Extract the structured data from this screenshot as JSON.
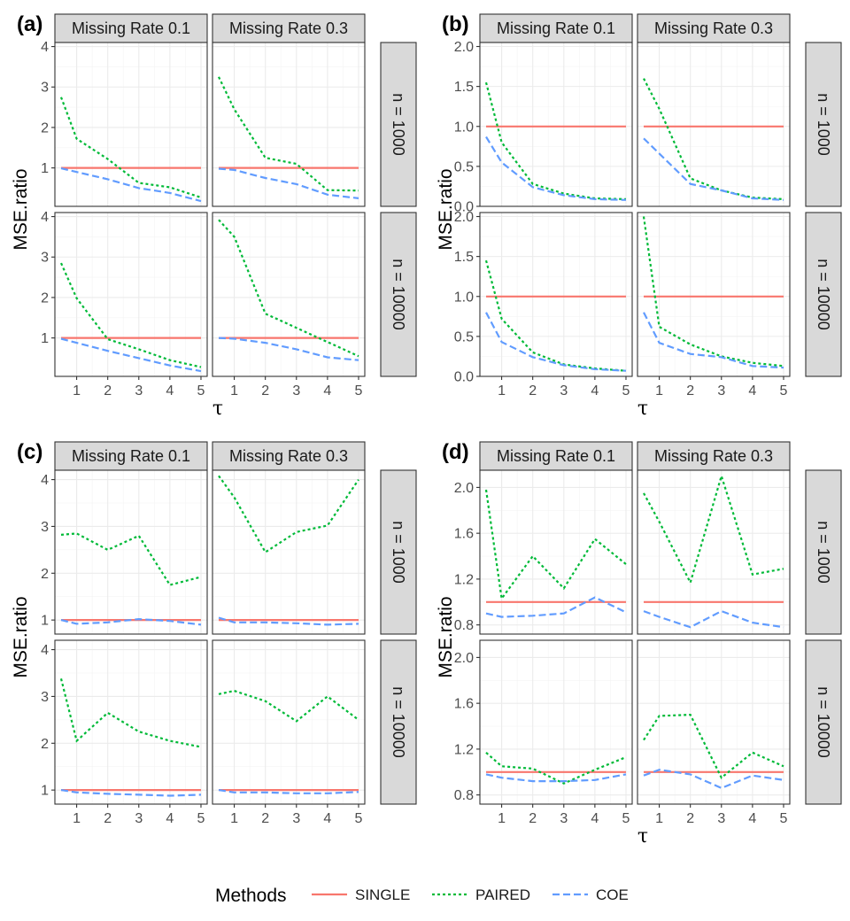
{
  "colors": {
    "SINGLE": "#F8766D",
    "PAIRED": "#00BA38",
    "COE": "#619CFF"
  },
  "legend": {
    "title": "Methods",
    "items": [
      {
        "key": "SINGLE",
        "label": "SINGLE",
        "dash": "solid"
      },
      {
        "key": "PAIRED",
        "label": "PAIRED",
        "dash": "dotted"
      },
      {
        "key": "COE",
        "label": "COE",
        "dash": "dashed"
      }
    ]
  },
  "chart_data": [
    {
      "label": "(a)",
      "type": "line",
      "ylabel": "MSE.ratio",
      "xlabel": "τ",
      "x": [
        0.5,
        1,
        2,
        3,
        4,
        5
      ],
      "xticks": [
        1,
        2,
        3,
        4,
        5
      ],
      "xlim": [
        0.3,
        5.2
      ],
      "ylim": [
        0.05,
        4.1
      ],
      "yticks": [
        1,
        2,
        3,
        4
      ],
      "ytick_labels": [
        "1",
        "2",
        "3",
        "4"
      ],
      "columns": [
        "Missing Rate 0.1",
        "Missing Rate 0.3"
      ],
      "rows": [
        "n = 1000",
        "n = 10000"
      ],
      "panels": [
        {
          "row": 0,
          "col": 0,
          "series": {
            "SINGLE": [
              1,
              1,
              1,
              1,
              1,
              1
            ],
            "PAIRED": [
              2.75,
              1.72,
              1.22,
              0.63,
              0.52,
              0.27
            ],
            "COE": [
              0.99,
              0.9,
              0.72,
              0.5,
              0.38,
              0.18
            ]
          }
        },
        {
          "row": 0,
          "col": 1,
          "series": {
            "SINGLE": [
              1,
              1,
              1,
              1,
              1,
              1
            ],
            "PAIRED": [
              3.25,
              2.45,
              1.25,
              1.1,
              0.45,
              0.44
            ],
            "COE": [
              0.98,
              0.95,
              0.75,
              0.6,
              0.34,
              0.25
            ]
          }
        },
        {
          "row": 1,
          "col": 0,
          "series": {
            "SINGLE": [
              1,
              1,
              1,
              1,
              1,
              1
            ],
            "PAIRED": [
              2.85,
              1.98,
              0.97,
              0.72,
              0.45,
              0.28
            ],
            "COE": [
              0.98,
              0.88,
              0.68,
              0.5,
              0.32,
              0.18
            ]
          }
        },
        {
          "row": 1,
          "col": 1,
          "series": {
            "SINGLE": [
              1,
              1,
              1,
              1,
              1,
              1
            ],
            "PAIRED": [
              3.92,
              3.5,
              1.6,
              1.25,
              0.9,
              0.55
            ],
            "COE": [
              1.0,
              0.98,
              0.88,
              0.72,
              0.52,
              0.45
            ]
          }
        }
      ]
    },
    {
      "label": "(b)",
      "type": "line",
      "ylabel": "MSE.ratio",
      "xlabel": "τ",
      "x": [
        0.5,
        1,
        2,
        3,
        4,
        5
      ],
      "xticks": [
        1,
        2,
        3,
        4,
        5
      ],
      "xlim": [
        0.3,
        5.2
      ],
      "ylim": [
        0,
        2.05
      ],
      "yticks": [
        0,
        0.5,
        1,
        1.5,
        2
      ],
      "ytick_labels": [
        "0.0",
        "0.5",
        "1.0",
        "1.5",
        "2.0"
      ],
      "columns": [
        "Missing Rate 0.1",
        "Missing Rate 0.3"
      ],
      "rows": [
        "n = 1000",
        "n = 10000"
      ],
      "panels": [
        {
          "row": 0,
          "col": 0,
          "series": {
            "SINGLE": [
              1,
              1,
              1,
              1,
              1,
              1
            ],
            "PAIRED": [
              1.55,
              0.8,
              0.28,
              0.16,
              0.1,
              0.09
            ],
            "COE": [
              0.87,
              0.55,
              0.24,
              0.14,
              0.09,
              0.08
            ]
          }
        },
        {
          "row": 0,
          "col": 1,
          "series": {
            "SINGLE": [
              1,
              1,
              1,
              1,
              1,
              1
            ],
            "PAIRED": [
              1.6,
              1.22,
              0.35,
              0.2,
              0.11,
              0.09
            ],
            "COE": [
              0.85,
              0.66,
              0.28,
              0.2,
              0.1,
              0.08
            ]
          }
        },
        {
          "row": 1,
          "col": 0,
          "series": {
            "SINGLE": [
              1,
              1,
              1,
              1,
              1,
              1
            ],
            "PAIRED": [
              1.45,
              0.72,
              0.3,
              0.15,
              0.1,
              0.07
            ],
            "COE": [
              0.8,
              0.43,
              0.24,
              0.14,
              0.09,
              0.07
            ]
          }
        },
        {
          "row": 1,
          "col": 1,
          "series": {
            "SINGLE": [
              1,
              1,
              1,
              1,
              1,
              1
            ],
            "PAIRED": [
              2.0,
              0.62,
              0.4,
              0.25,
              0.17,
              0.13
            ],
            "COE": [
              0.8,
              0.42,
              0.28,
              0.24,
              0.13,
              0.11
            ]
          }
        }
      ]
    },
    {
      "label": "(c)",
      "type": "line",
      "ylabel": "MSE.ratio",
      "xlabel": "",
      "x": [
        0.5,
        1,
        2,
        3,
        4,
        5
      ],
      "xticks": [
        1,
        2,
        3,
        4,
        5
      ],
      "xlim": [
        0.3,
        5.2
      ],
      "ylim": [
        0.7,
        4.2
      ],
      "yticks": [
        1,
        2,
        3,
        4
      ],
      "ytick_labels": [
        "1",
        "2",
        "3",
        "4"
      ],
      "columns": [
        "Missing Rate 0.1",
        "Missing Rate 0.3"
      ],
      "rows": [
        "n = 1000",
        "n = 10000"
      ],
      "panels": [
        {
          "row": 0,
          "col": 0,
          "series": {
            "SINGLE": [
              1,
              1,
              1,
              1,
              1,
              1
            ],
            "PAIRED": [
              2.82,
              2.85,
              2.5,
              2.8,
              1.75,
              1.92
            ],
            "COE": [
              1.0,
              0.92,
              0.95,
              1.02,
              0.98,
              0.9
            ]
          }
        },
        {
          "row": 0,
          "col": 1,
          "series": {
            "SINGLE": [
              1,
              1,
              1,
              1,
              1,
              1
            ],
            "PAIRED": [
              4.08,
              3.62,
              2.45,
              2.88,
              3.02,
              4.0
            ],
            "COE": [
              1.05,
              0.95,
              0.95,
              0.93,
              0.9,
              0.92
            ]
          }
        },
        {
          "row": 1,
          "col": 0,
          "series": {
            "SINGLE": [
              1,
              1,
              1,
              1,
              1,
              1
            ],
            "PAIRED": [
              3.38,
              2.05,
              2.65,
              2.25,
              2.05,
              1.92
            ],
            "COE": [
              1.0,
              0.95,
              0.92,
              0.9,
              0.88,
              0.9
            ]
          }
        },
        {
          "row": 1,
          "col": 1,
          "series": {
            "SINGLE": [
              1,
              1,
              1,
              1,
              1,
              1
            ],
            "PAIRED": [
              3.05,
              3.12,
              2.9,
              2.47,
              3.0,
              2.5
            ],
            "COE": [
              1.0,
              0.95,
              0.95,
              0.93,
              0.93,
              0.96
            ]
          }
        }
      ]
    },
    {
      "label": "(d)",
      "type": "line",
      "ylabel": "MSE.ratio",
      "xlabel": "τ",
      "x": [
        0.5,
        1,
        2,
        3,
        4,
        5
      ],
      "xticks": [
        1,
        2,
        3,
        4,
        5
      ],
      "xlim": [
        0.3,
        5.2
      ],
      "ylim": [
        0.72,
        2.15
      ],
      "yticks": [
        0.8,
        1.2,
        1.6,
        2.0
      ],
      "ytick_labels": [
        "0.8",
        "1.2",
        "1.6",
        "2.0"
      ],
      "columns": [
        "Missing Rate 0.1",
        "Missing Rate 0.3"
      ],
      "rows": [
        "n = 1000",
        "n = 10000"
      ],
      "panels": [
        {
          "row": 0,
          "col": 0,
          "series": {
            "SINGLE": [
              1,
              1,
              1,
              1,
              1,
              1
            ],
            "PAIRED": [
              1.98,
              1.03,
              1.4,
              1.12,
              1.55,
              1.33
            ],
            "COE": [
              0.9,
              0.87,
              0.88,
              0.9,
              1.04,
              0.91
            ]
          }
        },
        {
          "row": 0,
          "col": 1,
          "series": {
            "SINGLE": [
              1,
              1,
              1,
              1,
              1,
              1
            ],
            "PAIRED": [
              1.95,
              1.7,
              1.17,
              2.1,
              1.24,
              1.29
            ],
            "COE": [
              0.92,
              0.87,
              0.78,
              0.92,
              0.82,
              0.78
            ]
          }
        },
        {
          "row": 1,
          "col": 0,
          "series": {
            "SINGLE": [
              1,
              1,
              1,
              1,
              1,
              1
            ],
            "PAIRED": [
              1.17,
              1.05,
              1.03,
              0.9,
              1.02,
              1.13
            ],
            "COE": [
              0.98,
              0.95,
              0.92,
              0.92,
              0.93,
              0.98
            ]
          }
        },
        {
          "row": 1,
          "col": 1,
          "series": {
            "SINGLE": [
              1,
              1,
              1,
              1,
              1,
              1
            ],
            "PAIRED": [
              1.28,
              1.49,
              1.5,
              0.95,
              1.17,
              1.05
            ],
            "COE": [
              0.97,
              1.02,
              0.98,
              0.86,
              0.97,
              0.93
            ]
          }
        }
      ]
    }
  ]
}
